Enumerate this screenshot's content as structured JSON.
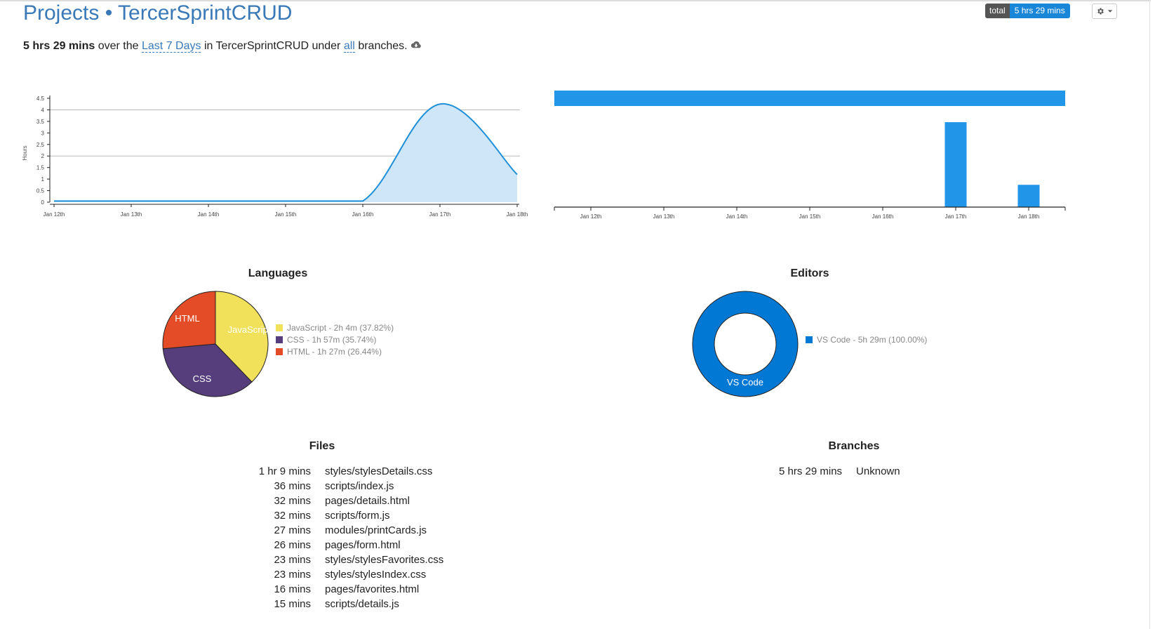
{
  "header": {
    "breadcrumb_root": "Projects",
    "separator": "•",
    "project_name": "TercerSprintCRUD",
    "total_label": "total",
    "total_value": "5 hrs 29 mins",
    "settings_icon": "gear-icon"
  },
  "summary": {
    "duration": "5 hrs 29 mins",
    "t1": "over the",
    "range": "Last 7 Days",
    "t2": "in TercerSprintCRUD under",
    "branches_link": "all",
    "t3": "branches.",
    "cloud_icon": "cloud-download-icon"
  },
  "chart_data": [
    {
      "type": "area",
      "ylabel": "Hours",
      "x": [
        "Jan 12th",
        "Jan 13th",
        "Jan 14th",
        "Jan 15th",
        "Jan 16th",
        "Jan 17th",
        "Jan 18th"
      ],
      "values": [
        0.05,
        0.05,
        0.05,
        0.05,
        0.05,
        4.25,
        1.2
      ],
      "yticks": [
        "0",
        "0.5",
        "1",
        "1.5",
        "2",
        "2.5",
        "3",
        "3.5",
        "4",
        "4.5"
      ],
      "ylim": [
        0,
        4.5
      ],
      "color": "#1e90d8",
      "fill": "#cfe6f8"
    },
    {
      "type": "bar",
      "categories": [
        "Jan 12th",
        "Jan 13th",
        "Jan 14th",
        "Jan 15th",
        "Jan 16th",
        "Jan 17th",
        "Jan 18th"
      ],
      "values": [
        0,
        0,
        0,
        0,
        0,
        4.0,
        1.05
      ],
      "total_bar": 5.48,
      "color": "#2196e8"
    },
    {
      "type": "pie",
      "title": "Languages",
      "slices": [
        {
          "label": "JavaScript",
          "legend": "JavaScript - 2h 4m (37.82%)",
          "value": 37.82,
          "color": "#f1e05a"
        },
        {
          "label": "CSS",
          "legend": "CSS - 1h 57m (35.74%)",
          "value": 35.74,
          "color": "#563d7c"
        },
        {
          "label": "HTML",
          "legend": "HTML - 1h 27m (26.44%)",
          "value": 26.44,
          "color": "#e34c26"
        }
      ]
    },
    {
      "type": "pie",
      "title": "Editors",
      "slices": [
        {
          "label": "VS Code",
          "legend": "VS Code - 5h 29m (100.00%)",
          "value": 100,
          "color": "#0078d4"
        }
      ]
    }
  ],
  "files": {
    "title": "Files",
    "rows": [
      {
        "time": "1 hr 9 mins",
        "name": "styles/stylesDetails.css"
      },
      {
        "time": "36 mins",
        "name": "scripts/index.js"
      },
      {
        "time": "32 mins",
        "name": "pages/details.html"
      },
      {
        "time": "32 mins",
        "name": "scripts/form.js"
      },
      {
        "time": "27 mins",
        "name": "modules/printCards.js"
      },
      {
        "time": "26 mins",
        "name": "pages/form.html"
      },
      {
        "time": "23 mins",
        "name": "styles/stylesFavorites.css"
      },
      {
        "time": "23 mins",
        "name": "styles/stylesIndex.css"
      },
      {
        "time": "16 mins",
        "name": "pages/favorites.html"
      },
      {
        "time": "15 mins",
        "name": "scripts/details.js"
      }
    ]
  },
  "branches": {
    "title": "Branches",
    "rows": [
      {
        "time": "5 hrs 29 mins",
        "name": "Unknown"
      }
    ]
  }
}
